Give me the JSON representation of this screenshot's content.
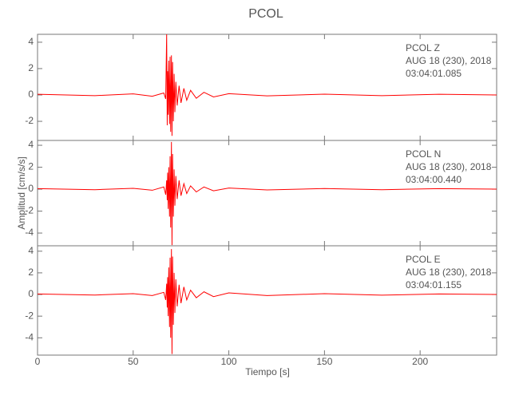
{
  "chart_data": [
    {
      "type": "line",
      "title": "PCOL",
      "color": "#ff0000",
      "annotations": [
        "PCOL   Z",
        "AUG 18 (230), 2018",
        "03:04:01.085"
      ],
      "xlim": [
        0,
        240
      ],
      "ylim": [
        -3.45,
        4.6
      ],
      "yticks": [
        -2,
        0,
        2,
        4
      ],
      "x": [
        0,
        30,
        50,
        60,
        66,
        67,
        67.5,
        67.8,
        68,
        68.3,
        68.6,
        69,
        69.3,
        69.6,
        70,
        70.3,
        70.6,
        71,
        71.4,
        71.8,
        72.3,
        73,
        74,
        75,
        76.5,
        78,
        80,
        83,
        87,
        92,
        100,
        120,
        150,
        180,
        210,
        240
      ],
      "values": [
        0.05,
        -0.05,
        0.08,
        -0.1,
        0.15,
        -0.3,
        4.6,
        -2.3,
        1.8,
        -1.5,
        2.6,
        -2.2,
        2.9,
        -2.8,
        3.0,
        -3.1,
        2.5,
        -2.0,
        1.6,
        -1.3,
        1.0,
        -0.8,
        0.7,
        -0.6,
        0.5,
        -0.4,
        0.35,
        -0.25,
        0.2,
        -0.15,
        0.1,
        -0.07,
        0.06,
        -0.05,
        0.05,
        0
      ]
    },
    {
      "type": "line",
      "ylabel": "Amplitud [cm/s/s]",
      "color": "#ff0000",
      "annotations": [
        "PCOL   N",
        "AUG 18 (230), 2018",
        "03:04:00.440"
      ],
      "xlim": [
        0,
        240
      ],
      "ylim": [
        -5.16,
        4.44
      ],
      "yticks": [
        -4,
        -2,
        0,
        2,
        4
      ],
      "x": [
        0,
        30,
        50,
        60,
        66,
        67,
        67.5,
        67.8,
        68,
        68.3,
        68.6,
        69,
        69.3,
        69.6,
        70,
        70.3,
        70.6,
        71,
        71.4,
        71.8,
        72.3,
        73,
        74,
        75,
        76.5,
        78,
        80,
        83,
        87,
        92,
        100,
        120,
        150,
        180,
        210,
        240
      ],
      "values": [
        0.05,
        -0.05,
        0.08,
        -0.1,
        0.2,
        -0.5,
        0.8,
        -1.0,
        1.5,
        -1.8,
        2.0,
        -2.5,
        3.0,
        -3.5,
        4.3,
        -5.1,
        3.2,
        -2.5,
        1.8,
        -1.5,
        1.2,
        -0.9,
        0.8,
        -0.6,
        0.5,
        -0.4,
        0.3,
        -0.25,
        0.2,
        -0.15,
        0.1,
        -0.07,
        0.06,
        -0.05,
        0.05,
        0
      ]
    },
    {
      "type": "line",
      "xlabel": "Tiempo [s]",
      "color": "#ff0000",
      "annotations": [
        "PCOL   E",
        "AUG 18 (230), 2018",
        "03:04:01.155"
      ],
      "xlim": [
        0,
        240
      ],
      "xticks": [
        0,
        50,
        100,
        150,
        200
      ],
      "ylim": [
        -5.6,
        4.5
      ],
      "yticks": [
        -4,
        -2,
        0,
        2,
        4
      ],
      "x": [
        0,
        30,
        50,
        60,
        66,
        67,
        67.5,
        67.8,
        68,
        68.3,
        68.6,
        69,
        69.3,
        69.6,
        70,
        70.3,
        70.6,
        71,
        71.4,
        71.8,
        72.3,
        73,
        74,
        75,
        76.5,
        78,
        80,
        83,
        87,
        92,
        100,
        120,
        150,
        180,
        210,
        240
      ],
      "values": [
        0.05,
        -0.05,
        0.08,
        -0.1,
        0.2,
        -0.5,
        1.0,
        -1.2,
        1.6,
        -2.0,
        2.5,
        -3.0,
        3.4,
        -4.0,
        4.2,
        -5.5,
        3.5,
        -2.8,
        2.0,
        -1.7,
        1.4,
        -1.1,
        0.9,
        -0.8,
        0.7,
        -0.5,
        0.4,
        -0.3,
        0.25,
        -0.2,
        0.15,
        -0.1,
        0.08,
        -0.06,
        0.05,
        0
      ]
    }
  ]
}
